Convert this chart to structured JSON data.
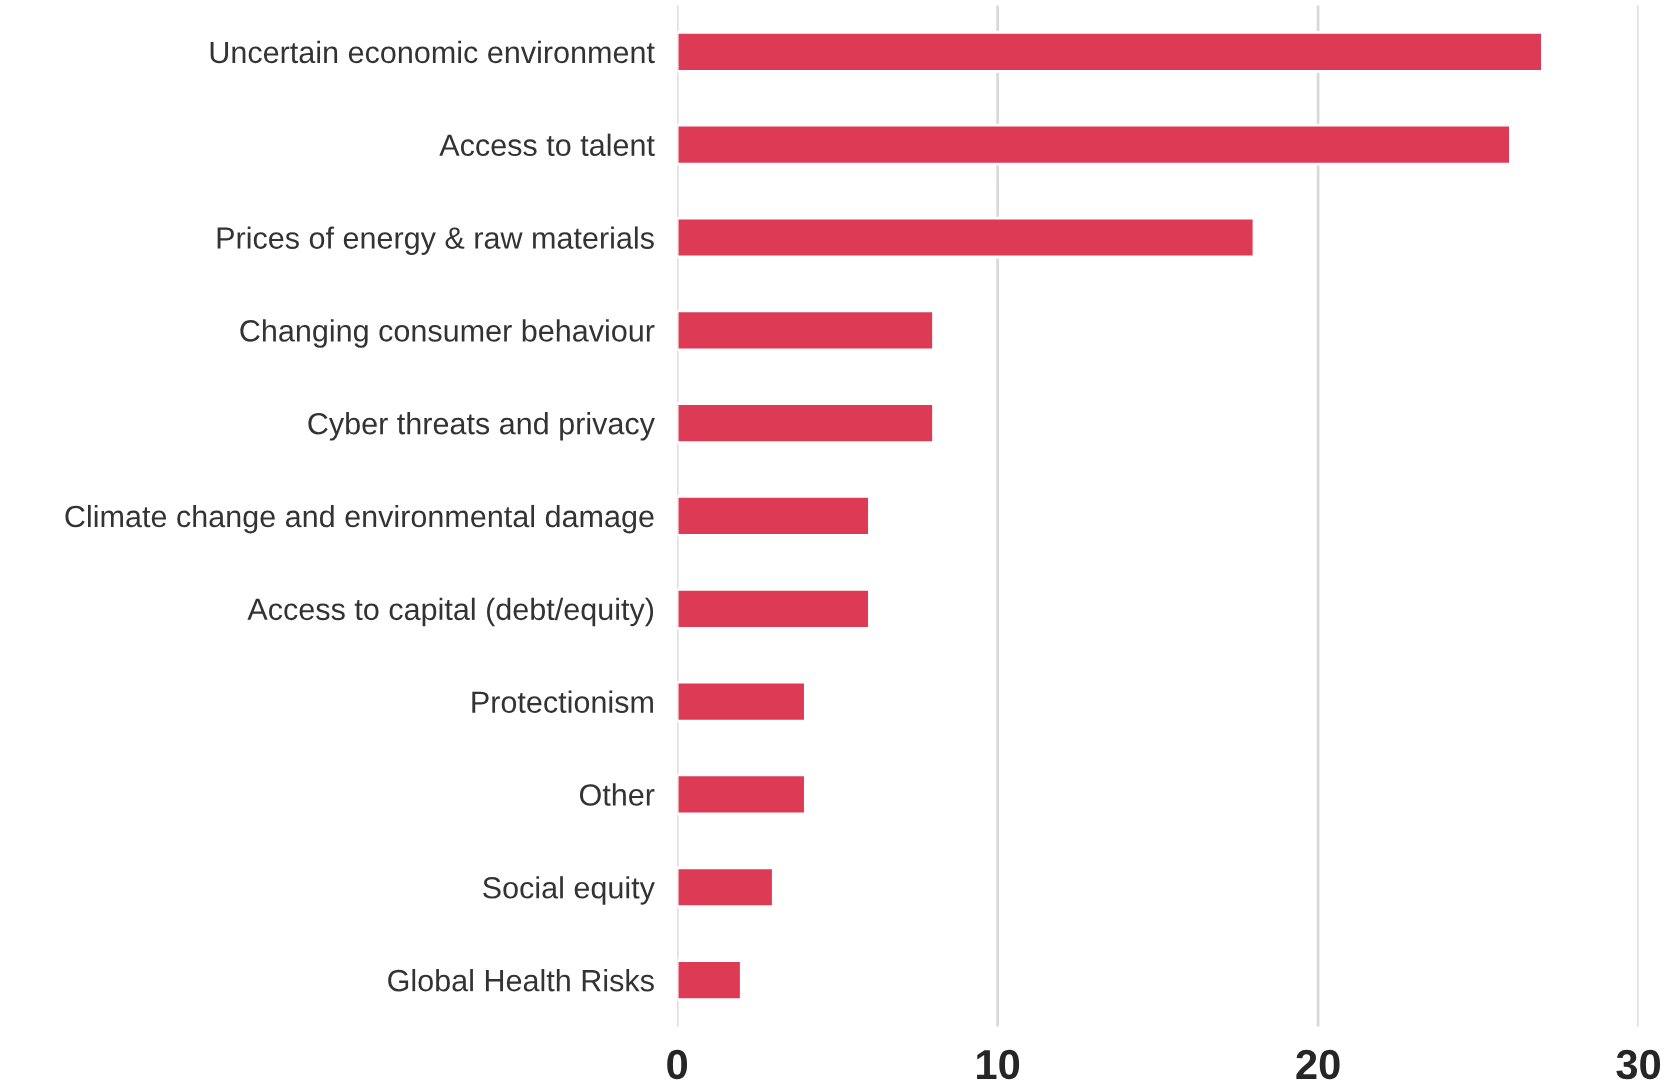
{
  "chart_data": {
    "type": "bar",
    "orientation": "horizontal",
    "categories": [
      "Uncertain economic environment",
      "Access to talent",
      "Prices of energy & raw materials",
      "Changing consumer behaviour",
      "Cyber threats and privacy",
      "Climate change and environmental damage",
      "Access to capital (debt/equity)",
      "Protectionism",
      "Other",
      "Social equity",
      "Global Health Risks"
    ],
    "values": [
      27,
      26,
      18,
      8,
      8,
      6,
      6,
      4,
      4,
      3,
      2
    ],
    "color": "#dc3a55",
    "xlim": [
      0,
      30
    ],
    "xticks": [
      0,
      10,
      20,
      30
    ],
    "grid": "x"
  }
}
